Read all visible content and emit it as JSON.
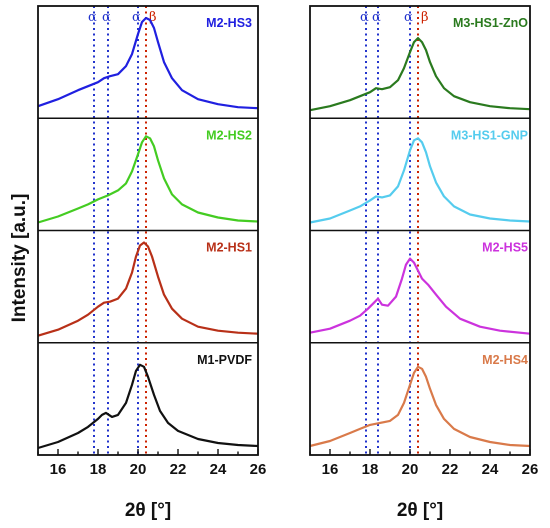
{
  "chart_data": [
    {
      "type": "line",
      "xlabel": "2θ [°]",
      "ylabel": "Intensity [a.u.]",
      "xlim": [
        15,
        26
      ],
      "xticks": [
        16,
        18,
        20,
        22,
        24,
        26
      ],
      "ref_lines": [
        {
          "x": 17.8,
          "label": "α",
          "color": "#2233cc"
        },
        {
          "x": 18.5,
          "label": "α",
          "color": "#2233cc"
        },
        {
          "x": 20.0,
          "label": "α",
          "color": "#2233cc"
        },
        {
          "x": 20.4,
          "label": "β",
          "color": "#cc2200"
        }
      ],
      "series": [
        {
          "name": "M2-HS3",
          "color": "#2020e0",
          "x": [
            15,
            16,
            17,
            17.5,
            18,
            18.3,
            18.6,
            19,
            19.4,
            19.7,
            20,
            20.2,
            20.4,
            20.6,
            20.8,
            21,
            21.3,
            21.7,
            22.2,
            23,
            24,
            25,
            26
          ],
          "y": [
            0.08,
            0.15,
            0.24,
            0.28,
            0.32,
            0.36,
            0.38,
            0.4,
            0.48,
            0.6,
            0.8,
            0.92,
            0.96,
            0.94,
            0.86,
            0.72,
            0.52,
            0.36,
            0.24,
            0.15,
            0.1,
            0.07,
            0.06
          ]
        },
        {
          "name": "M2-HS2",
          "color": "#44cc22",
          "x": [
            15,
            16,
            17,
            17.5,
            18,
            18.5,
            19,
            19.4,
            19.7,
            20,
            20.2,
            20.4,
            20.6,
            20.8,
            21,
            21.3,
            21.7,
            22.2,
            23,
            24,
            25,
            26
          ],
          "y": [
            0.04,
            0.1,
            0.18,
            0.22,
            0.27,
            0.31,
            0.36,
            0.43,
            0.55,
            0.72,
            0.84,
            0.9,
            0.88,
            0.8,
            0.66,
            0.48,
            0.32,
            0.22,
            0.14,
            0.09,
            0.06,
            0.05
          ]
        },
        {
          "name": "M2-HS1",
          "color": "#b83018",
          "x": [
            15,
            16,
            17,
            17.5,
            18,
            18.3,
            18.6,
            19,
            19.4,
            19.7,
            19.9,
            20.1,
            20.3,
            20.5,
            20.7,
            21,
            21.3,
            21.7,
            22.2,
            23,
            24,
            25,
            26
          ],
          "y": [
            0.03,
            0.09,
            0.18,
            0.24,
            0.32,
            0.36,
            0.37,
            0.4,
            0.5,
            0.66,
            0.82,
            0.93,
            0.96,
            0.92,
            0.82,
            0.62,
            0.44,
            0.3,
            0.2,
            0.12,
            0.08,
            0.06,
            0.05
          ]
        },
        {
          "name": "M1-PVDF",
          "color": "#111111",
          "x": [
            15,
            16,
            17,
            17.5,
            18,
            18.2,
            18.4,
            18.7,
            19,
            19.4,
            19.7,
            19.9,
            20.1,
            20.3,
            20.5,
            20.8,
            21.1,
            21.5,
            22,
            23,
            24,
            25,
            26
          ],
          "y": [
            0.03,
            0.09,
            0.18,
            0.24,
            0.32,
            0.36,
            0.38,
            0.34,
            0.36,
            0.48,
            0.66,
            0.8,
            0.86,
            0.84,
            0.74,
            0.56,
            0.4,
            0.28,
            0.2,
            0.12,
            0.08,
            0.06,
            0.05
          ]
        }
      ]
    },
    {
      "type": "line",
      "xlabel": "2θ [°]",
      "ylabel": "",
      "xlim": [
        15,
        26
      ],
      "xticks": [
        16,
        18,
        20,
        22,
        24,
        26
      ],
      "ref_lines": [
        {
          "x": 17.8,
          "label": "α",
          "color": "#2233cc"
        },
        {
          "x": 18.4,
          "label": "α",
          "color": "#2233cc"
        },
        {
          "x": 20.0,
          "label": "α",
          "color": "#2233cc"
        },
        {
          "x": 20.4,
          "label": "β",
          "color": "#cc2200"
        }
      ],
      "series": [
        {
          "name": "M3-HS1-ZnO",
          "color": "#2a7a1e",
          "x": [
            15,
            16,
            17,
            17.5,
            18,
            18.3,
            18.6,
            19,
            19.4,
            19.7,
            20,
            20.2,
            20.4,
            20.6,
            20.8,
            21,
            21.3,
            21.7,
            22.2,
            23,
            24,
            25,
            26
          ],
          "y": [
            0.04,
            0.08,
            0.14,
            0.18,
            0.22,
            0.26,
            0.25,
            0.27,
            0.34,
            0.46,
            0.62,
            0.72,
            0.76,
            0.72,
            0.64,
            0.52,
            0.38,
            0.26,
            0.18,
            0.12,
            0.08,
            0.06,
            0.05
          ]
        },
        {
          "name": "M3-HS1-GNP",
          "color": "#55ccee",
          "x": [
            15,
            16,
            17,
            17.5,
            18,
            18.3,
            18.6,
            19,
            19.4,
            19.7,
            20,
            20.2,
            20.4,
            20.6,
            20.8,
            21,
            21.3,
            21.7,
            22.2,
            23,
            24,
            25,
            26
          ],
          "y": [
            0.04,
            0.08,
            0.16,
            0.2,
            0.26,
            0.3,
            0.29,
            0.31,
            0.4,
            0.56,
            0.76,
            0.86,
            0.88,
            0.84,
            0.74,
            0.6,
            0.44,
            0.3,
            0.2,
            0.12,
            0.08,
            0.06,
            0.05
          ]
        },
        {
          "name": "M2-HS5",
          "color": "#cc33dd",
          "x": [
            15,
            16,
            17,
            17.5,
            17.9,
            18.2,
            18.4,
            18.6,
            18.9,
            19.3,
            19.6,
            19.8,
            20.0,
            20.2,
            20.4,
            20.6,
            20.9,
            21.3,
            21.8,
            22.5,
            23.5,
            24.5,
            26
          ],
          "y": [
            0.06,
            0.1,
            0.18,
            0.23,
            0.3,
            0.36,
            0.4,
            0.34,
            0.33,
            0.42,
            0.6,
            0.74,
            0.8,
            0.76,
            0.68,
            0.6,
            0.54,
            0.44,
            0.32,
            0.2,
            0.12,
            0.08,
            0.05
          ]
        },
        {
          "name": "M2-HS4",
          "color": "#d97a4a",
          "x": [
            15,
            16,
            17,
            17.5,
            18,
            18.5,
            19,
            19.4,
            19.7,
            20,
            20.2,
            20.4,
            20.6,
            20.8,
            21,
            21.3,
            21.7,
            22.2,
            23,
            24,
            25,
            26
          ],
          "y": [
            0.05,
            0.1,
            0.18,
            0.22,
            0.26,
            0.28,
            0.3,
            0.36,
            0.48,
            0.66,
            0.78,
            0.84,
            0.82,
            0.74,
            0.62,
            0.46,
            0.32,
            0.22,
            0.14,
            0.09,
            0.06,
            0.05
          ]
        }
      ]
    }
  ]
}
